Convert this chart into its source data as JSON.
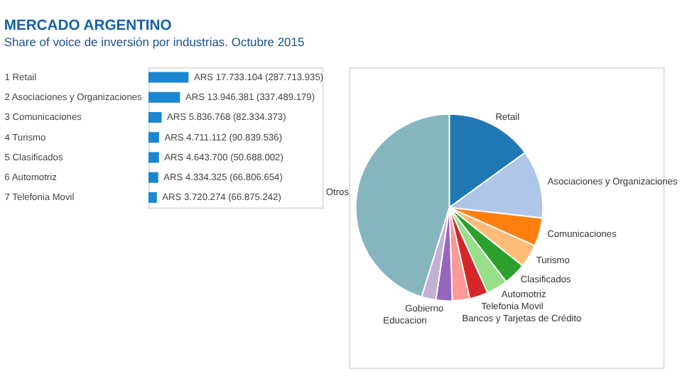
{
  "chart_data": [
    {
      "type": "pie",
      "categories": [
        "Retail",
        "Asociaciones y Organizaciones",
        "Comunicaciones",
        "Turismo",
        "Clasificados",
        "Automotriz",
        "Telefonia Movil",
        "Bancos y Tarjetas de Crédito",
        "Gobierno",
        "Educacion",
        "Otros"
      ],
      "values": [
        15,
        11.8,
        4.9,
        4,
        3.9,
        3.7,
        3.2,
        3,
        2.8,
        2.5,
        45.2
      ],
      "colors": [
        "#1f77b4",
        "#aec7e8",
        "#ff7f0e",
        "#ffbb78",
        "#2ca02c",
        "#98df8a",
        "#d62728",
        "#ff9896",
        "#9467bd",
        "#c5b0d5",
        "#85b6bf"
      ]
    },
    {
      "type": "bar",
      "orientation": "horizontal",
      "title": "MERCADO ARGENTINO",
      "subtitle": "Share of voice de inversión por industrias.  Octubre 2015",
      "categories": [
        "1  Retail",
        "2  Asociaciones y Organizaciones",
        "3  Comunicaciones",
        "4  Turismo",
        "5  Clasificados",
        "6  Automotriz",
        "7  Telefonia Movil"
      ],
      "values": [
        17733104,
        13946381,
        5836768,
        4711112,
        4643700,
        4334325,
        3720274
      ],
      "value_labels": [
        "ARS 17.733.104 (287.713.935)",
        "ARS 13.946.381 (337.489.179)",
        "ARS 5.836.768 (82.334.373)",
        "ARS 4.711.112 (90.839.536)",
        "ARS 4.643.700 (50.688.002)",
        "ARS 4.334.325 (66.806.654)",
        "ARS 3.720.274 (66.875.242)"
      ],
      "color": "#1a87d0"
    }
  ]
}
